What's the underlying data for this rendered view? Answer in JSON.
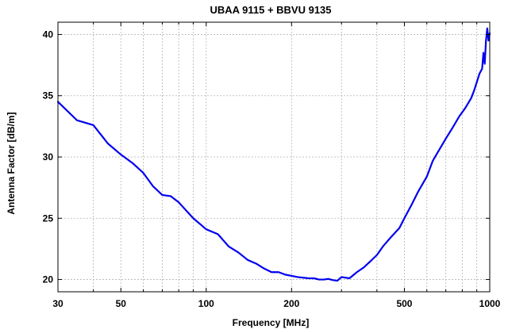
{
  "chart_data": {
    "type": "line",
    "title": "UBAA 9115 + BBVU 9135",
    "xlabel": "Frequency [MHz]",
    "ylabel": "Antenna Factor [dB/m]",
    "x_scale": "log",
    "xlim": [
      30,
      1000
    ],
    "ylim": [
      19,
      41
    ],
    "x_ticks": [
      30,
      50,
      100,
      200,
      500,
      1000
    ],
    "y_ticks": [
      20,
      25,
      30,
      35,
      40
    ],
    "x_grid": [
      30,
      40,
      50,
      60,
      70,
      80,
      90,
      100,
      200,
      300,
      400,
      500,
      600,
      700,
      800,
      900,
      1000
    ],
    "y_grid": [
      20,
      25,
      30,
      35,
      40
    ],
    "grid": true,
    "series": [
      {
        "name": "UBAA 9115 + BBVU 9135",
        "color": "#0000ee",
        "x": [
          30,
          35,
          40,
          45,
          50,
          55,
          60,
          65,
          70,
          75,
          80,
          90,
          100,
          110,
          120,
          130,
          140,
          150,
          160,
          170,
          180,
          190,
          200,
          210,
          220,
          230,
          240,
          250,
          260,
          270,
          280,
          290,
          300,
          320,
          340,
          360,
          380,
          400,
          420,
          450,
          480,
          500,
          530,
          560,
          600,
          630,
          660,
          700,
          740,
          780,
          820,
          860,
          880,
          900,
          920,
          940,
          950,
          960,
          970,
          980,
          990,
          1000
        ],
        "y": [
          34.5,
          33.0,
          32.6,
          31.1,
          30.2,
          29.5,
          28.7,
          27.6,
          26.9,
          26.8,
          26.3,
          25.0,
          24.1,
          23.7,
          22.7,
          22.2,
          21.6,
          21.3,
          20.9,
          20.6,
          20.6,
          20.4,
          20.3,
          20.2,
          20.15,
          20.1,
          20.1,
          20.0,
          20.0,
          20.05,
          19.95,
          19.9,
          20.2,
          20.1,
          20.6,
          21.0,
          21.5,
          22.0,
          22.7,
          23.5,
          24.2,
          25.0,
          26.1,
          27.2,
          28.4,
          29.7,
          30.5,
          31.5,
          32.4,
          33.3,
          34.0,
          34.8,
          35.4,
          36.1,
          36.8,
          37.2,
          38.5,
          37.6,
          39.5,
          40.5,
          39.5,
          40.1
        ]
      }
    ]
  }
}
